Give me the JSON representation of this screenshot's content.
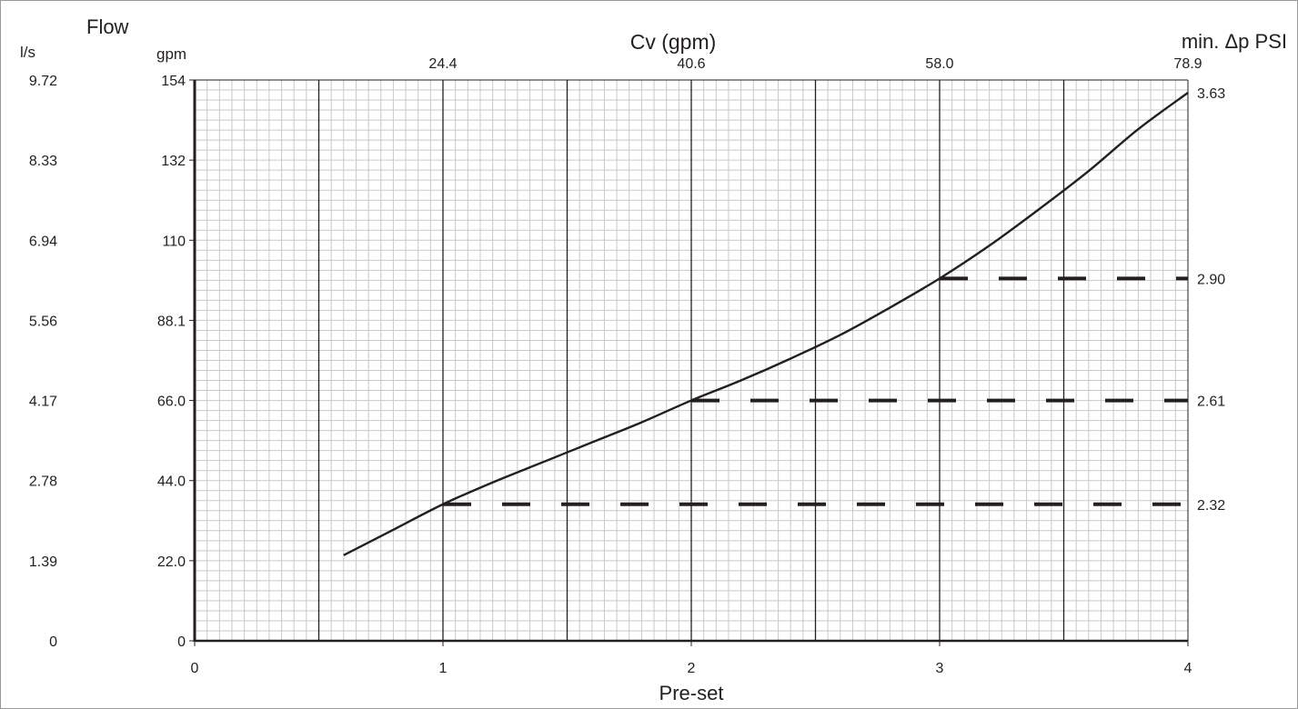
{
  "chart_data": {
    "type": "line",
    "title": "",
    "xlabel": "Pre-set",
    "x_ticks": [
      "0",
      "1",
      "2",
      "3",
      "4"
    ],
    "xlim": [
      0,
      4
    ],
    "flow_label": "Flow",
    "left_axis_ls": {
      "unit": "l/s",
      "ticks": [
        "0",
        "1.39",
        "2.78",
        "4.17",
        "5.56",
        "6.94",
        "8.33",
        "9.72"
      ]
    },
    "left_axis_gpm": {
      "unit": "gpm",
      "ticks": [
        "0",
        "22.0",
        "44.0",
        "66.0",
        "88.1",
        "110",
        "132",
        "154"
      ],
      "ylim": [
        0,
        154
      ]
    },
    "top_axis": {
      "label": "Cv (gpm)",
      "ticks": [
        {
          "preset": 1,
          "label": "24.4"
        },
        {
          "preset": 2,
          "label": "40.6"
        },
        {
          "preset": 3,
          "label": "58.0"
        },
        {
          "preset": 4,
          "label": "78.9"
        }
      ]
    },
    "right_axis": {
      "label": "min. Δp PSI",
      "ticks": [
        {
          "gpm": 37.5,
          "label": "2.32"
        },
        {
          "gpm": 66.0,
          "label": "2.61"
        },
        {
          "gpm": 99.5,
          "label": "2.90"
        },
        {
          "gpm": 150.5,
          "label": "3.63"
        }
      ]
    },
    "grid": true,
    "series": [
      {
        "style": "solid",
        "x": [
          0.6,
          0.8,
          1.0,
          1.2,
          1.4,
          1.6,
          1.8,
          2.0,
          2.2,
          2.4,
          2.6,
          2.8,
          3.0,
          3.2,
          3.4,
          3.6,
          3.8,
          4.0
        ],
        "y": [
          23.5,
          30.5,
          37.5,
          43.5,
          49.0,
          54.5,
          60.0,
          66.0,
          71.5,
          77.5,
          84.0,
          91.5,
          99.5,
          108.5,
          118.5,
          129.0,
          140.5,
          150.5
        ]
      }
    ],
    "reference_lines": [
      {
        "style": "dashed",
        "x_start": 1,
        "x_end": 4,
        "y": 37.5
      },
      {
        "style": "dashed",
        "x_start": 2,
        "x_end": 4,
        "y": 66.0
      },
      {
        "style": "dashed",
        "x_start": 3,
        "x_end": 4,
        "y": 99.5
      }
    ]
  }
}
